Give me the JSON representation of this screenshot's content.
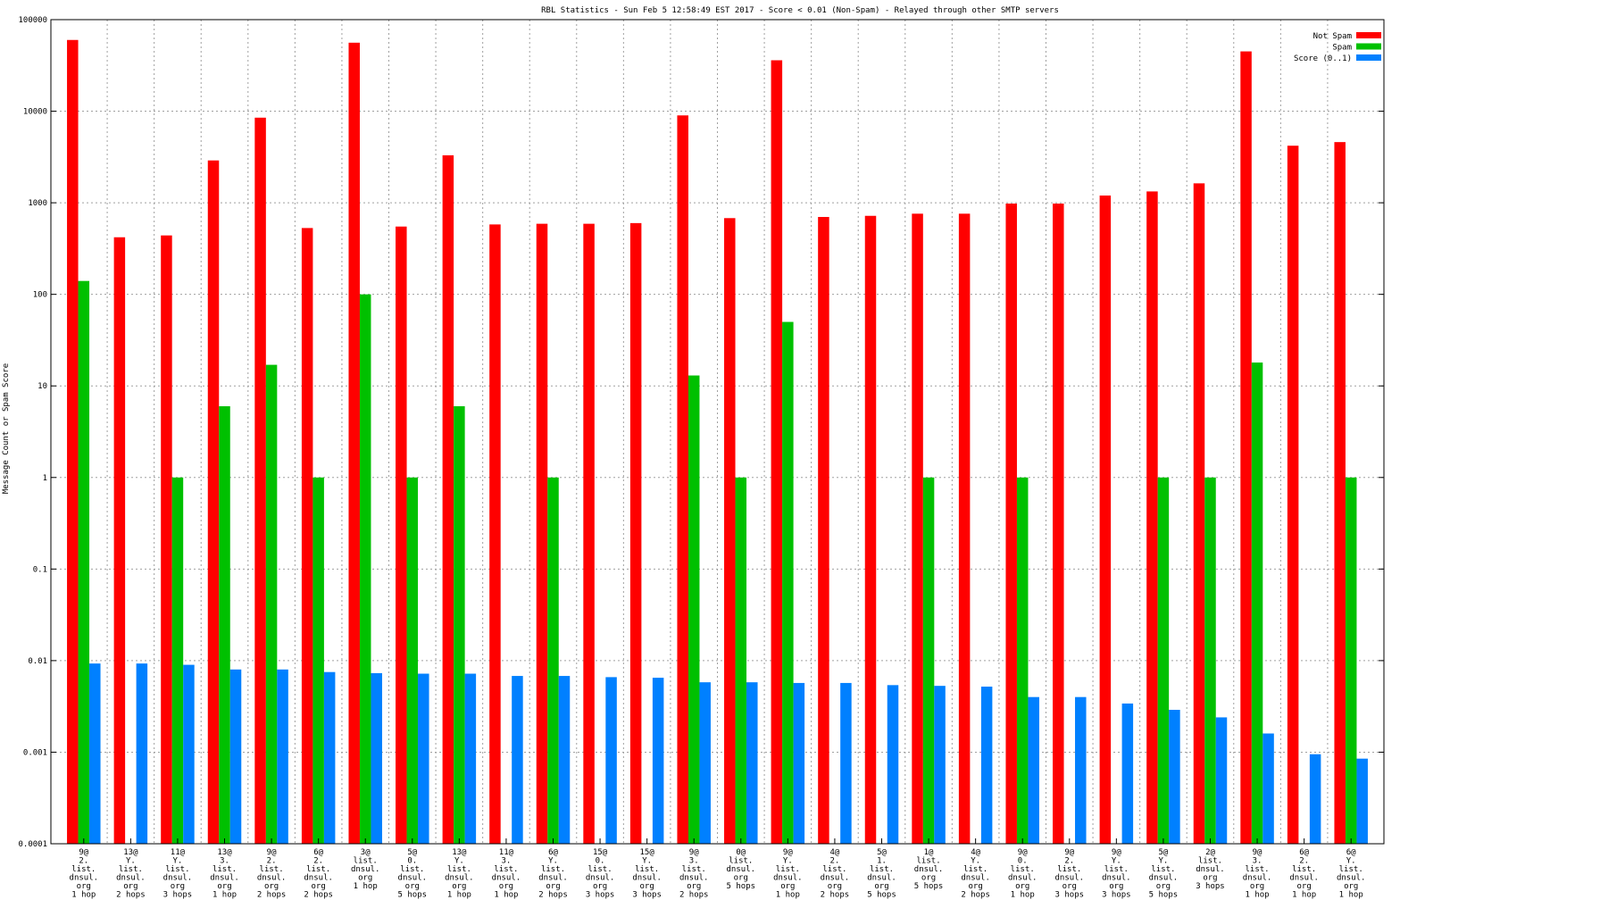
{
  "chart_data": {
    "type": "bar",
    "title": "RBL Statistics - Sun Feb  5 12:58:49 EST 2017 - Score < 0.01 (Non-Spam) - Relayed through other SMTP servers",
    "ylabel": "Message Count or Spam Score",
    "xlabel": "",
    "y_scale": "log",
    "ylim": [
      0.0001,
      100000
    ],
    "y_ticks": [
      "100000",
      "10000",
      "1000",
      "100",
      "10",
      "1",
      "0.1",
      "0.01",
      "0.001",
      "0.0001"
    ],
    "grid": true,
    "legend_position": "top-right",
    "categories": [
      [
        "9@",
        "2.",
        "list.",
        "dnsul.",
        "org",
        "1 hop"
      ],
      [
        "13@",
        "Y.",
        "list.",
        "dnsul.",
        "org",
        "2 hops"
      ],
      [
        "11@",
        "Y.",
        "list.",
        "dnsul.",
        "org",
        "3 hops"
      ],
      [
        "13@",
        "3.",
        "list.",
        "dnsul.",
        "org",
        "1 hop"
      ],
      [
        "9@",
        "2.",
        "list.",
        "dnsul.",
        "org",
        "2 hops"
      ],
      [
        "6@",
        "2.",
        "list.",
        "dnsul.",
        "org",
        "2 hops"
      ],
      [
        "3@",
        "list.",
        "dnsul.",
        "org",
        "1 hop"
      ],
      [
        "5@",
        "0.",
        "list.",
        "dnsul.",
        "org",
        "5 hops"
      ],
      [
        "13@",
        "Y.",
        "list.",
        "dnsul.",
        "org",
        "1 hop"
      ],
      [
        "11@",
        "3.",
        "list.",
        "dnsul.",
        "org",
        "1 hop"
      ],
      [
        "6@",
        "Y.",
        "list.",
        "dnsul.",
        "org",
        "2 hops"
      ],
      [
        "15@",
        "0.",
        "list.",
        "dnsul.",
        "org",
        "3 hops"
      ],
      [
        "15@",
        "Y.",
        "list.",
        "dnsul.",
        "org",
        "3 hops"
      ],
      [
        "9@",
        "3.",
        "list.",
        "dnsul.",
        "org",
        "2 hops"
      ],
      [
        "0@",
        "list.",
        "dnsul.",
        "org",
        "5 hops"
      ],
      [
        "9@",
        "Y.",
        "list.",
        "dnsul.",
        "org",
        "1 hop"
      ],
      [
        "4@",
        "2.",
        "list.",
        "dnsul.",
        "org",
        "2 hops"
      ],
      [
        "5@",
        "1.",
        "list.",
        "dnsul.",
        "org",
        "5 hops"
      ],
      [
        "1@",
        "list.",
        "dnsul.",
        "org",
        "5 hops"
      ],
      [
        "4@",
        "Y.",
        "list.",
        "dnsul.",
        "org",
        "2 hops"
      ],
      [
        "9@",
        "0.",
        "list.",
        "dnsul.",
        "org",
        "1 hop"
      ],
      [
        "9@",
        "2.",
        "list.",
        "dnsul.",
        "org",
        "3 hops"
      ],
      [
        "9@",
        "Y.",
        "list.",
        "dnsul.",
        "org",
        "3 hops"
      ],
      [
        "5@",
        "Y.",
        "list.",
        "dnsul.",
        "org",
        "5 hops"
      ],
      [
        "2@",
        "list.",
        "dnsul.",
        "org",
        "3 hops"
      ],
      [
        "9@",
        "3.",
        "list.",
        "dnsul.",
        "org",
        "1 hop"
      ],
      [
        "6@",
        "2.",
        "list.",
        "dnsul.",
        "org",
        "1 hop"
      ],
      [
        "6@",
        "Y.",
        "list.",
        "dnsul.",
        "org",
        "1 hop"
      ]
    ],
    "series": [
      {
        "name": "Not Spam",
        "color": "#ff0000",
        "values": [
          60000,
          420,
          440,
          2900,
          8500,
          530,
          56000,
          550,
          3300,
          580,
          590,
          590,
          600,
          9000,
          680,
          36000,
          700,
          720,
          760,
          760,
          980,
          980,
          1200,
          1330,
          1630,
          45000,
          4200,
          4600
        ]
      },
      {
        "name": "Spam",
        "color": "#00c000",
        "values": [
          140,
          null,
          1,
          6,
          17,
          1,
          100,
          1,
          6,
          null,
          1,
          null,
          null,
          13,
          1,
          50,
          null,
          null,
          1,
          null,
          1,
          null,
          null,
          1,
          1,
          18,
          null,
          1
        ]
      },
      {
        "name": "Score (0..1)",
        "color": "#0080ff",
        "values": [
          0.0093,
          0.0093,
          0.009,
          0.008,
          0.008,
          0.0075,
          0.0073,
          0.0072,
          0.0072,
          0.0068,
          0.0068,
          0.0066,
          0.0065,
          0.0058,
          0.0058,
          0.0057,
          0.0057,
          0.0054,
          0.0053,
          0.0052,
          0.004,
          0.004,
          0.0034,
          0.0029,
          0.0024,
          0.0016,
          0.00095,
          0.00085
        ]
      }
    ]
  }
}
